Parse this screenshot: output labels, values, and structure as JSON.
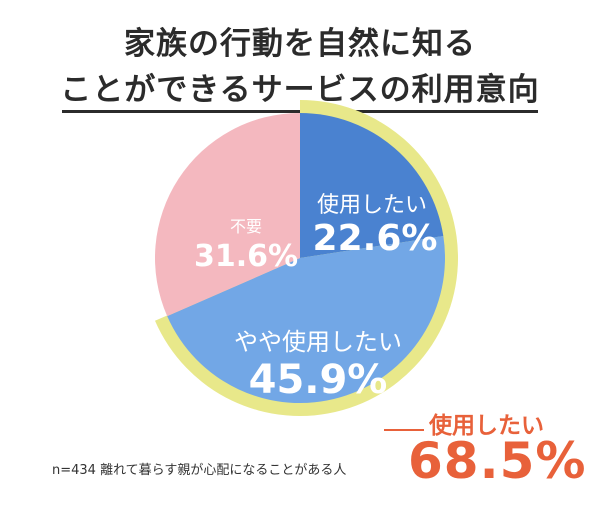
{
  "title": {
    "line1": "家族の行動を自然に知る",
    "line2": "ことができるサービスの利用意向"
  },
  "chart_data": {
    "type": "pie",
    "title": "家族の行動を自然に知ることができるサービスの利用意向",
    "slices": [
      {
        "label": "使用したい",
        "value": 22.6,
        "display": "22.6%",
        "color": "#4a82d0"
      },
      {
        "label": "やや使用したい",
        "value": 45.9,
        "display": "45.9%",
        "color": "#72a7e6"
      },
      {
        "label": "不要",
        "value": 31.6,
        "display": "31.6%",
        "color": "#f4b8bf"
      }
    ],
    "highlight": {
      "label": "使用したい",
      "value": 68.5,
      "display": "68.5%",
      "color": "#e8e88a"
    },
    "note": "n=434 離れて暮らす親が心配になることがある人"
  },
  "colors": {
    "accent": "#e8613a",
    "text": "#2b2b2b"
  }
}
